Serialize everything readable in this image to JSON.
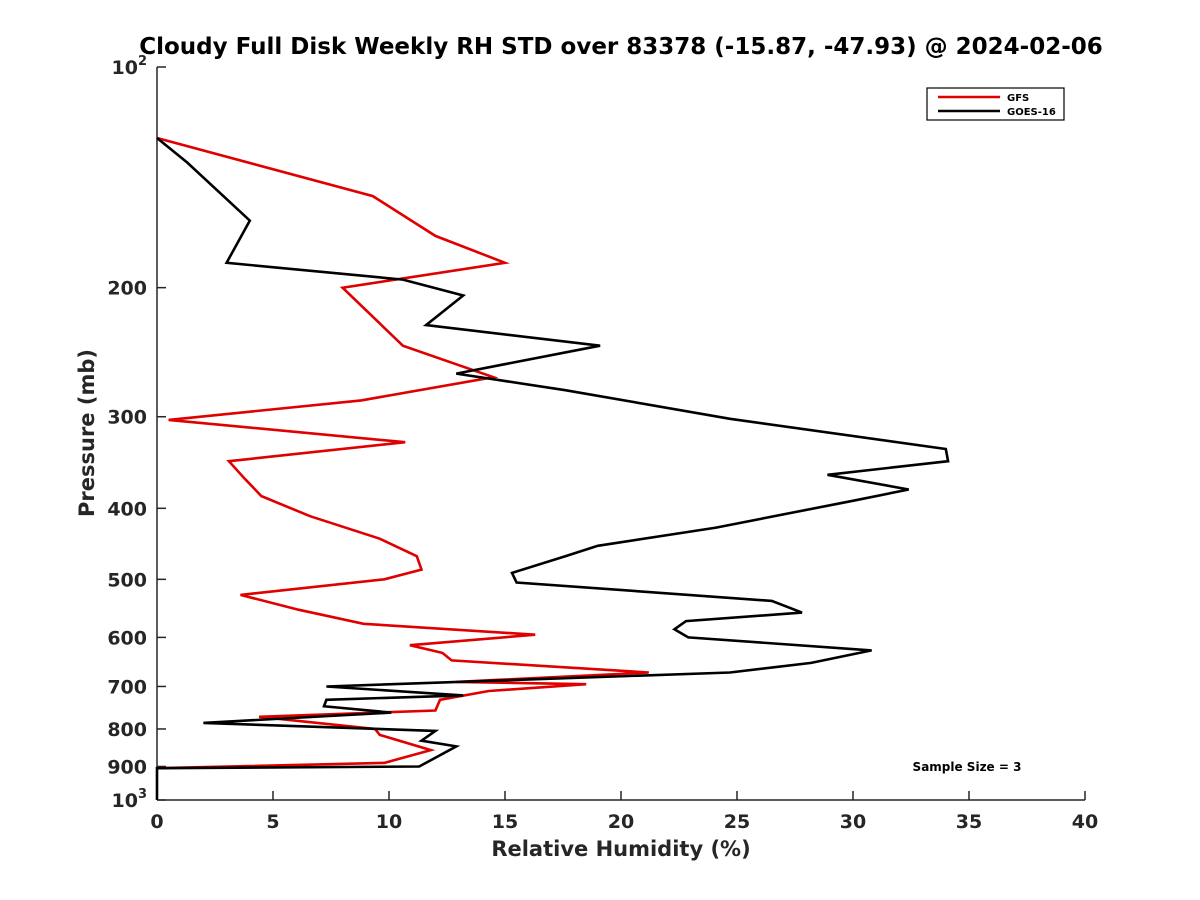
{
  "chart_data": {
    "type": "line",
    "title": "Cloudy Full Disk Weekly RH STD over 83378 (-15.87, -47.93) @ 2024-02-06",
    "xlabel": "Relative Humidity (%)",
    "ylabel": "Pressure (mb)",
    "xlim": [
      0,
      40
    ],
    "ylim": [
      100,
      1000
    ],
    "y_scale": "log",
    "y_reversed": true,
    "x_ticks": [
      0,
      5,
      10,
      15,
      20,
      25,
      30,
      35,
      40
    ],
    "x_tick_labels": [
      "0",
      "5",
      "10",
      "15",
      "20",
      "25",
      "30",
      "35",
      "40"
    ],
    "y_ticks": [
      100,
      200,
      300,
      400,
      500,
      600,
      700,
      800,
      900,
      1000
    ],
    "y_tick_labels": [
      "10^2",
      "200",
      "300",
      "400",
      "500",
      "600",
      "700",
      "800",
      "900",
      "10^3"
    ],
    "grid": false,
    "legend_placement": "top-right",
    "annotation": "Sample Size = 3",
    "series": [
      {
        "name": "GFS",
        "color": "#e00000",
        "points": [
          [
            0,
            125
          ],
          [
            9.3,
            150
          ],
          [
            12,
            170
          ],
          [
            15,
            185
          ],
          [
            8,
            200
          ],
          [
            10.6,
            240
          ],
          [
            14.5,
            265
          ],
          [
            8.8,
            285
          ],
          [
            0.5,
            303
          ],
          [
            10.7,
            325
          ],
          [
            3.1,
            345
          ],
          [
            3.8,
            365
          ],
          [
            4.5,
            385
          ],
          [
            6.6,
            410
          ],
          [
            9.6,
            440
          ],
          [
            11.2,
            465
          ],
          [
            11.4,
            485
          ],
          [
            9.8,
            500
          ],
          [
            3.6,
            525
          ],
          [
            6.1,
            550
          ],
          [
            8.9,
            575
          ],
          [
            16.3,
            595
          ],
          [
            10.9,
            615
          ],
          [
            12.3,
            630
          ],
          [
            12.7,
            645
          ],
          [
            21.2,
            670
          ],
          [
            12.9,
            690
          ],
          [
            18.5,
            695
          ],
          [
            14.3,
            710
          ],
          [
            12.2,
            730
          ],
          [
            12,
            755
          ],
          [
            4.4,
            770
          ],
          [
            9.4,
            800
          ],
          [
            9.6,
            815
          ],
          [
            11.8,
            855
          ],
          [
            9.8,
            890
          ],
          [
            0,
            905
          ]
        ]
      },
      {
        "name": "GOES-16",
        "color": "#000000",
        "points": [
          [
            0,
            125
          ],
          [
            1.3,
            135
          ],
          [
            4,
            162
          ],
          [
            3,
            185
          ],
          [
            10.6,
            195
          ],
          [
            13.2,
            205
          ],
          [
            11.6,
            225
          ],
          [
            19.1,
            240
          ],
          [
            12.9,
            262
          ],
          [
            17.6,
            276
          ],
          [
            24.7,
            302
          ],
          [
            34,
            332
          ],
          [
            34.1,
            345
          ],
          [
            28.9,
            360
          ],
          [
            32.4,
            377
          ],
          [
            30.1,
            390
          ],
          [
            24.1,
            425
          ],
          [
            19,
            450
          ],
          [
            17.6,
            465
          ],
          [
            15.3,
            490
          ],
          [
            15.5,
            505
          ],
          [
            26.5,
            535
          ],
          [
            27.8,
            555
          ],
          [
            22.8,
            570
          ],
          [
            22.3,
            585
          ],
          [
            22.9,
            600
          ],
          [
            30.8,
            625
          ],
          [
            28.2,
            650
          ],
          [
            24.7,
            670
          ],
          [
            7.3,
            700
          ],
          [
            13.2,
            720
          ],
          [
            7.3,
            730
          ],
          [
            7.2,
            745
          ],
          [
            10.1,
            760
          ],
          [
            2,
            785
          ],
          [
            12,
            805
          ],
          [
            11.4,
            830
          ],
          [
            12.9,
            845
          ],
          [
            11.3,
            900
          ],
          [
            0,
            905
          ],
          [
            0,
            1000
          ]
        ]
      }
    ]
  }
}
